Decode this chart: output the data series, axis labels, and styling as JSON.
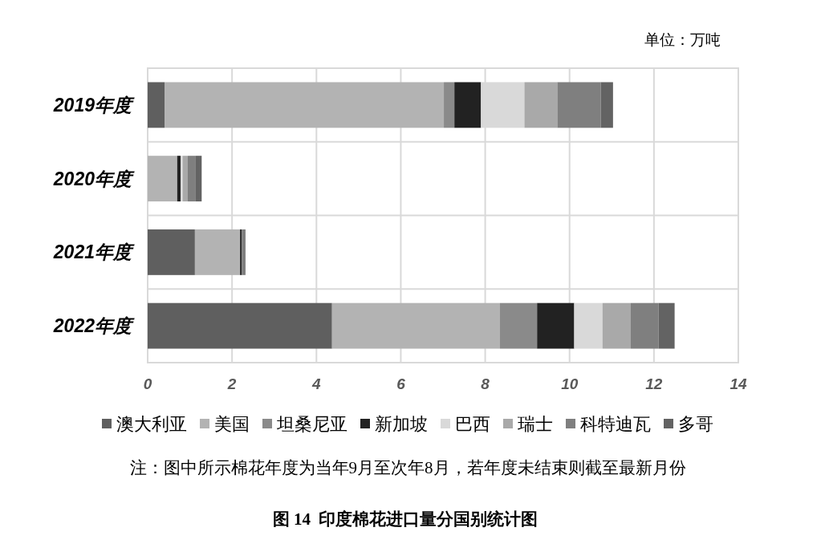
{
  "chart_data": {
    "type": "bar",
    "orientation": "horizontal",
    "stacked": true,
    "title": "图 14  印度棉花进口量分国别统计图",
    "annotations": [
      "单位：万吨",
      "注：图中所示棉花年度为当年9月至次年8月，若年度未结束则截至最新月份"
    ],
    "categories": [
      "2019年度",
      "2020年度",
      "2021年度",
      "2022年度"
    ],
    "series": [
      {
        "name": "澳大利亚",
        "color": "#5f5f5f",
        "values": [
          0.4,
          null,
          1.12,
          4.37
        ]
      },
      {
        "name": "美国",
        "color": "#b3b3b3",
        "values": [
          6.62,
          0.7,
          1.07,
          3.98
        ]
      },
      {
        "name": "坦桑尼亚",
        "color": "#8a8a8a",
        "values": [
          0.25,
          null,
          null,
          0.88
        ]
      },
      {
        "name": "新加坡",
        "color": "#222222",
        "values": [
          0.63,
          0.08,
          0.04,
          0.88
        ]
      },
      {
        "name": "巴西",
        "color": "#d9d9d9",
        "values": [
          1.03,
          0.05,
          null,
          0.67
        ]
      },
      {
        "name": "瑞士",
        "color": "#a9a9a9",
        "values": [
          0.78,
          0.12,
          null,
          0.67
        ]
      },
      {
        "name": "科特迪瓦",
        "color": "#7f7f7f",
        "values": [
          1.03,
          0.19,
          0.09,
          0.66
        ]
      },
      {
        "name": "多哥",
        "color": "#636363",
        "values": [
          0.29,
          0.14,
          null,
          0.38
        ]
      }
    ],
    "xlim": [
      0,
      14
    ],
    "xticks": [
      0,
      2,
      4,
      6,
      8,
      10,
      12,
      14
    ],
    "grid": true,
    "legend": "bottom"
  }
}
